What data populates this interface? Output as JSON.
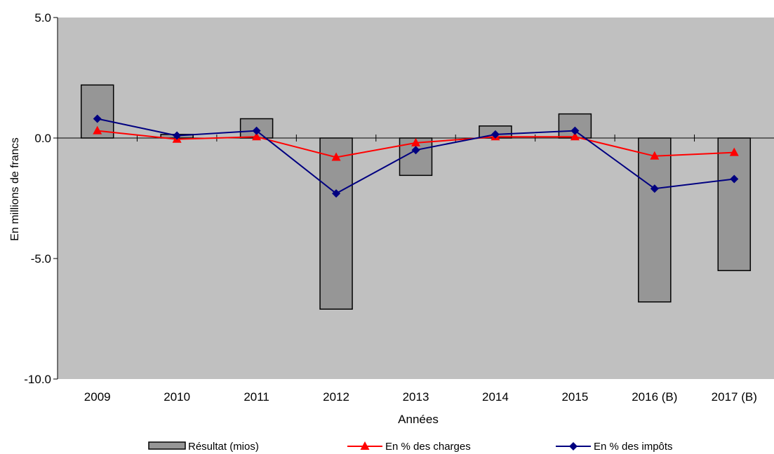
{
  "chart_data": {
    "type": "bar",
    "categories": [
      "2009",
      "2010",
      "2011",
      "2012",
      "2013",
      "2014",
      "2015",
      "2016 (B)",
      "2017 (B)"
    ],
    "series": [
      {
        "name": "Résultat  (mios)",
        "kind": "bar",
        "color": "#969696",
        "values": [
          2.2,
          0.15,
          0.8,
          -7.1,
          -1.55,
          0.5,
          1.0,
          -6.8,
          -5.5
        ]
      },
      {
        "name": "En % des charges",
        "kind": "line",
        "marker": "triangle",
        "color": "#ff0000",
        "values": [
          0.3,
          -0.05,
          0.05,
          -0.8,
          -0.2,
          0.05,
          0.05,
          -0.75,
          -0.6
        ]
      },
      {
        "name": "En % des impôts",
        "kind": "line",
        "marker": "diamond",
        "color": "#000080",
        "values": [
          0.8,
          0.1,
          0.3,
          -2.3,
          -0.5,
          0.15,
          0.3,
          -2.1,
          -1.7
        ]
      }
    ],
    "xlabel": "Années",
    "ylabel": "En millions de francs",
    "ylim": [
      -10.0,
      5.0
    ],
    "yticks": [
      "5.0",
      "0.0",
      "-5.0",
      "-10.0"
    ],
    "plot_background": "#c0c0c0",
    "legend_position": "bottom",
    "grid": false
  }
}
